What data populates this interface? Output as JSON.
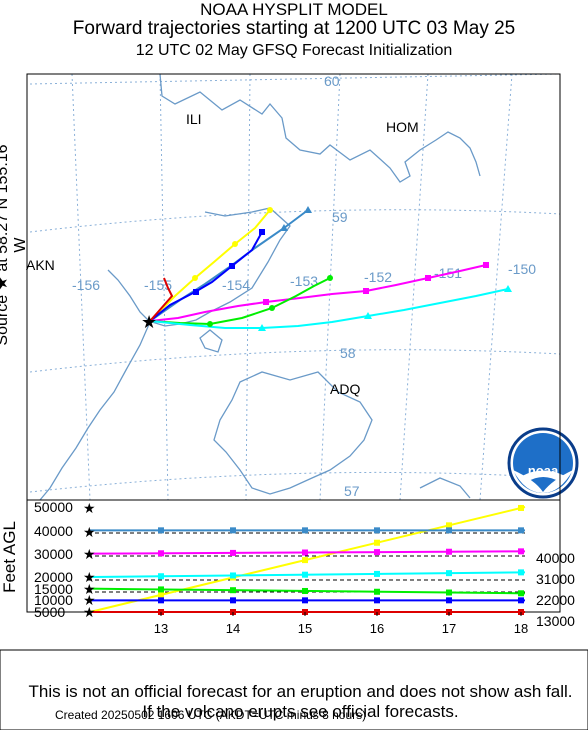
{
  "header": {
    "line1": "NOAA HYSPLIT MODEL",
    "line2": "Forward trajectories starting at 1200 UTC 03 May 25",
    "line3": "12 UTC 02 May     GFSQ  Forecast Initialization"
  },
  "source_label": "Source ★  at   58.27 N  155.16 W",
  "feet_label": "Feet AGL",
  "map": {
    "cities": [
      "ILI",
      "HOM",
      "AKN",
      "ADQ"
    ],
    "lon_labels": [
      "-156",
      "-155",
      "-154",
      "-153",
      "-152",
      "-151",
      "-150"
    ],
    "lat_labels": [
      "60",
      "59",
      "58",
      "57"
    ],
    "logo_text": "noaa",
    "colors": {
      "map_border": "#000000",
      "coast": "#6a9ac8",
      "grid": "#8ab0d8"
    }
  },
  "chart_data": {
    "type": "line",
    "x_ticks": [
      "13",
      "14",
      "15",
      "16",
      "17",
      "18"
    ],
    "left_labels": [
      "50000",
      "40000",
      "30000",
      "20000",
      "15000",
      "10000",
      "5000"
    ],
    "right_labels": [
      "40000",
      "31000",
      "22000",
      "13000"
    ],
    "series": [
      {
        "color": "#ffff00",
        "start_ft": 5000,
        "end_ft": 50000
      },
      {
        "color": "#3a8ac8",
        "start_ft": 40000,
        "end_ft": 40000
      },
      {
        "color": "#0000ff",
        "start_ft": 10000,
        "end_ft": 10000
      },
      {
        "color": "#ff00ff",
        "start_ft": 30000,
        "end_ft": 31000
      },
      {
        "color": "#00ee00",
        "start_ft": 15000,
        "end_ft": 13000
      },
      {
        "color": "#00ffff",
        "start_ft": 20000,
        "end_ft": 22000
      },
      {
        "color": "#dd0000",
        "start_ft": 5000,
        "end_ft": 5000
      }
    ]
  },
  "disclaimer": "This is not an official forecast for an eruption and does not show ash fall. If the volcano erupts see official forecasts.",
  "footer": "Created 20250502 1606 UTC       (AKDT=UTC minus 8 hours)"
}
